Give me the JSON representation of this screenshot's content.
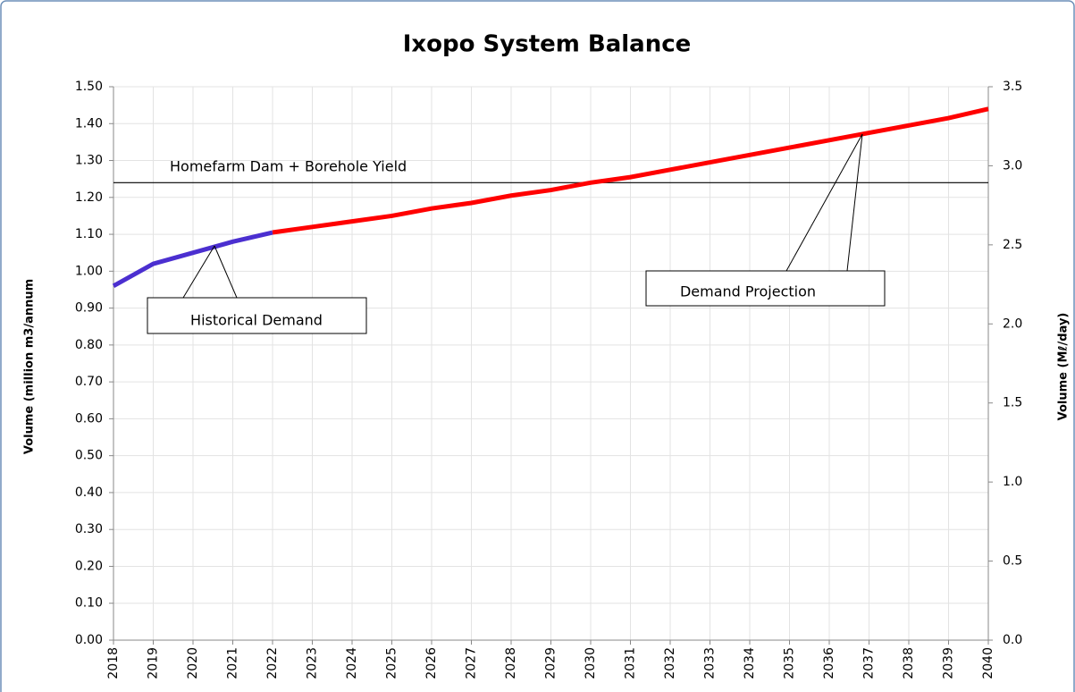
{
  "chart_data": {
    "type": "line",
    "title": "Ixopo System Balance",
    "y_label": "Volume (million m3/annum",
    "y2_label": "Volume (Mℓ/day)",
    "x": [
      2018,
      2019,
      2020,
      2021,
      2022,
      2023,
      2024,
      2025,
      2026,
      2027,
      2028,
      2029,
      2030,
      2031,
      2032,
      2033,
      2034,
      2035,
      2036,
      2037,
      2038,
      2039,
      2040
    ],
    "series": [
      {
        "name": "Historical Demand",
        "color": "#4b2fd0",
        "values": [
          0.96,
          1.02,
          1.05,
          1.08,
          1.105,
          null,
          null,
          null,
          null,
          null,
          null,
          null,
          null,
          null,
          null,
          null,
          null,
          null,
          null,
          null,
          null,
          null,
          null
        ]
      },
      {
        "name": "Demand Projection",
        "color": "#ff0000",
        "values": [
          null,
          null,
          null,
          null,
          1.105,
          1.12,
          1.135,
          1.15,
          1.17,
          1.185,
          1.205,
          1.22,
          1.24,
          1.255,
          1.275,
          1.295,
          1.315,
          1.335,
          1.355,
          1.375,
          1.395,
          1.415,
          1.44
        ]
      }
    ],
    "reference_line": {
      "label": "Homefarm Dam + Borehole Yield",
      "value": 1.24,
      "color": "#000000"
    },
    "xlim": [
      2018,
      2040
    ],
    "xticks": [
      2018,
      2019,
      2020,
      2021,
      2022,
      2023,
      2024,
      2025,
      2026,
      2027,
      2028,
      2029,
      2030,
      2031,
      2032,
      2033,
      2034,
      2035,
      2036,
      2037,
      2038,
      2039,
      2040
    ],
    "ylim": [
      0,
      1.5
    ],
    "yticks": [
      {
        "value": 0,
        "label": "0.00"
      },
      {
        "value": 0.1,
        "label": "0.10"
      },
      {
        "value": 0.2,
        "label": "0.20"
      },
      {
        "value": 0.3,
        "label": "0.30"
      },
      {
        "value": 0.4,
        "label": "0.40"
      },
      {
        "value": 0.5,
        "label": "0.50"
      },
      {
        "value": 0.6,
        "label": "0.60"
      },
      {
        "value": 0.7,
        "label": "0.70"
      },
      {
        "value": 0.8,
        "label": "0.80"
      },
      {
        "value": 0.9,
        "label": "0.90"
      },
      {
        "value": 1.0,
        "label": "1.00"
      },
      {
        "value": 1.1,
        "label": "1.10"
      },
      {
        "value": 1.2,
        "label": "1.20"
      },
      {
        "value": 1.3,
        "label": "1.30"
      },
      {
        "value": 1.4,
        "label": "1.40"
      },
      {
        "value": 1.5,
        "label": "1.50"
      }
    ],
    "y2lim": [
      0,
      3.5
    ],
    "y2ticks": [
      {
        "value": 0,
        "label": "0.0"
      },
      0.5,
      {
        "value": 1,
        "label": "1.0"
      },
      1.5,
      {
        "value": 2,
        "label": "2.0"
      },
      2.5,
      {
        "value": 3,
        "label": "3.0"
      },
      3.5
    ],
    "grid": true
  }
}
